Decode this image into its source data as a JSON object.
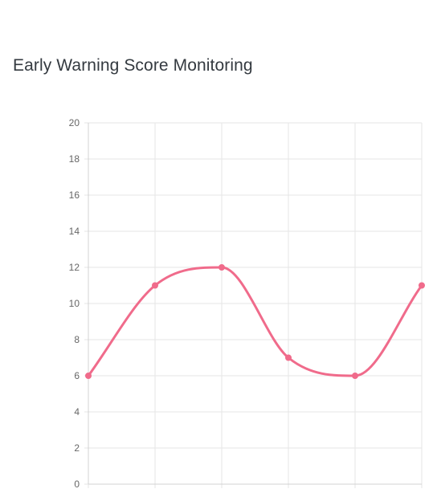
{
  "page": {
    "title": "Early Warning Score Monitoring"
  },
  "chart_data": {
    "type": "line",
    "title": "Early Warning Score Monitoring",
    "xlabel": "",
    "ylabel": "",
    "categories": [
      "",
      "",
      "",
      "",
      "",
      ""
    ],
    "series": [
      {
        "values": [
          6,
          11,
          12,
          7,
          6,
          11
        ]
      }
    ],
    "ylim": [
      0,
      20
    ],
    "yticks": [
      "0",
      "2",
      "4",
      "6",
      "8",
      "10",
      "12",
      "14",
      "16",
      "18",
      "20"
    ],
    "grid": true,
    "legend": "none",
    "line_color": "#f06b8b",
    "grid_color": "#e5e5e5",
    "axis_color": "#d3d3d3"
  }
}
